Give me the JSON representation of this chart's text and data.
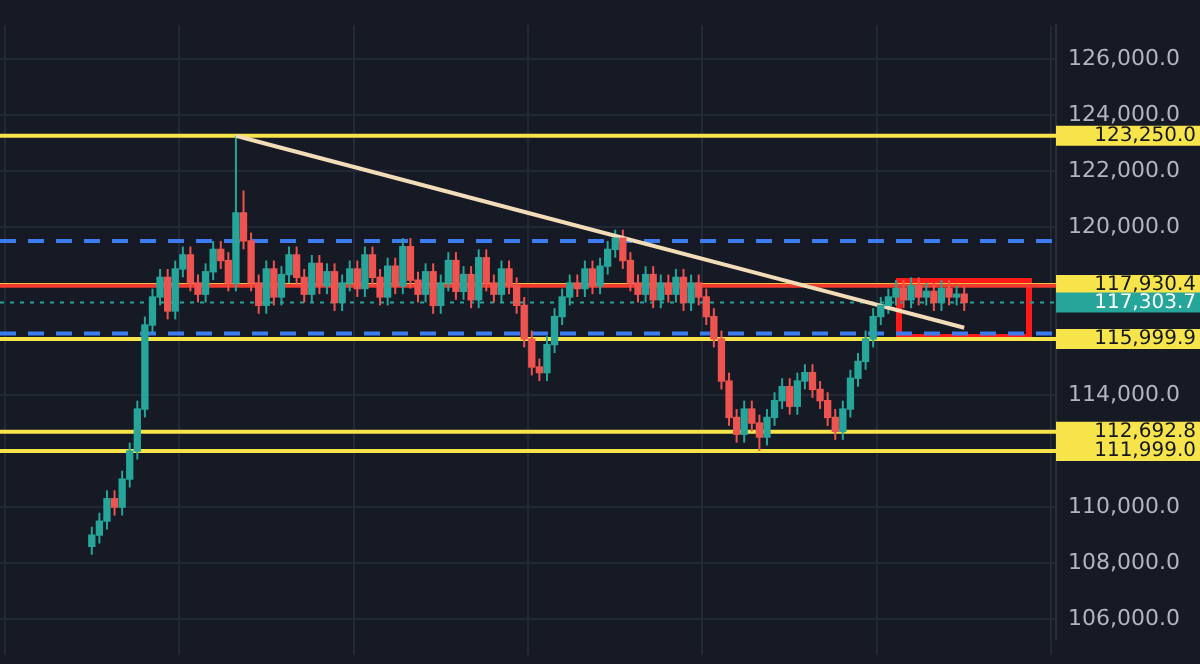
{
  "chart_data": {
    "type": "candlestick",
    "categories": [
      null,
      null,
      null,
      null,
      null,
      null,
      null,
      null,
      null,
      null,
      null,
      null,
      null,
      null,
      null,
      null,
      null,
      null,
      null,
      null,
      null,
      null,
      null,
      null,
      null,
      null,
      null,
      null,
      null,
      null,
      null,
      null,
      null,
      null,
      null,
      null,
      null,
      null,
      null,
      null,
      null,
      null,
      null,
      null,
      null,
      null,
      null,
      null,
      null,
      null,
      null,
      null,
      null,
      null,
      null,
      null,
      null,
      null,
      null,
      null,
      null,
      null,
      null,
      null,
      null,
      null,
      null,
      null,
      null,
      null,
      null,
      null,
      null,
      null,
      null,
      null,
      null,
      null,
      null,
      null,
      null,
      null,
      null,
      null,
      null,
      null,
      null,
      null,
      null,
      null,
      null,
      null,
      null,
      null,
      null,
      null,
      null,
      null,
      null,
      null,
      null,
      null,
      null,
      null,
      null,
      null,
      null,
      null,
      null,
      null,
      null,
      null,
      null,
      null,
      null,
      null
    ],
    "series": [
      {
        "type": "candlestick",
        "colors": [
          "#26a69a",
          "#26a69a",
          "#26a69a",
          "#ef5350",
          "#26a69a",
          "#26a69a",
          "#26a69a",
          "#26a69a",
          "#26a69a",
          "#26a69a",
          "#ef5350",
          "#26a69a",
          "#26a69a",
          "#ef5350",
          "#ef5350",
          "#26a69a",
          "#26a69a",
          "#ef5350",
          "#ef5350",
          "#26a69a",
          "#ef5350",
          "#ef5350",
          "#ef5350",
          "#26a69a",
          "#ef5350",
          "#26a69a",
          "#26a69a",
          "#ef5350",
          "#ef5350",
          "#26a69a",
          "#ef5350",
          "#26a69a",
          "#ef5350",
          "#26a69a",
          "#26a69a",
          "#ef5350",
          "#26a69a",
          "#ef5350",
          "#ef5350",
          "#26a69a",
          "#ef5350",
          "#26a69a",
          "#ef5350",
          "#ef5350",
          "#26a69a",
          "#ef5350",
          "#26a69a",
          "#26a69a",
          "#ef5350",
          "#26a69a",
          "#ef5350",
          "#26a69a",
          "#ef5350",
          "#ef5350",
          "#26a69a",
          "#ef5350",
          "#ef5350",
          "#ef5350",
          "#ef5350",
          "#ef5350",
          "#26a69a",
          "#26a69a",
          "#26a69a",
          "#26a69a",
          "#ef5350",
          "#26a69a",
          "#ef5350",
          "#26a69a",
          "#26a69a",
          "#26a69a",
          "#ef5350",
          "#ef5350",
          "#ef5350",
          "#26a69a",
          "#ef5350",
          "#26a69a",
          "#ef5350",
          "#26a69a",
          "#ef5350",
          "#26a69a",
          "#ef5350",
          "#ef5350",
          "#ef5350",
          "#ef5350",
          "#ef5350",
          "#ef5350",
          "#26a69a",
          "#ef5350",
          "#ef5350",
          "#26a69a",
          "#26a69a",
          "#26a69a",
          "#ef5350",
          "#26a69a",
          "#26a69a",
          "#ef5350",
          "#ef5350",
          "#ef5350",
          "#ef5350",
          "#26a69a",
          "#26a69a",
          "#26a69a",
          "#26a69a",
          "#26a69a",
          "#26a69a",
          "#26a69a",
          "#26a69a",
          "#ef5350",
          "#26a69a",
          "#ef5350",
          "#26a69a",
          "#ef5350",
          "#26a69a",
          "#ef5350",
          "#26a69a",
          "#ef5350"
        ],
        "ohlc": [
          [
            108600,
            109300,
            108300,
            109000
          ],
          [
            109000,
            109800,
            108700,
            109500
          ],
          [
            109500,
            110600,
            109200,
            110300
          ],
          [
            110300,
            110600,
            109700,
            110000
          ],
          [
            110000,
            111300,
            109700,
            111000
          ],
          [
            111000,
            112300,
            110700,
            112000
          ],
          [
            112000,
            113800,
            111700,
            113500
          ],
          [
            113500,
            116800,
            113200,
            116500
          ],
          [
            116500,
            117800,
            116200,
            117500
          ],
          [
            117500,
            118500,
            117200,
            118200
          ],
          [
            118200,
            118500,
            116700,
            117000
          ],
          [
            117000,
            118800,
            116700,
            118500
          ],
          [
            118500,
            119300,
            118200,
            119000
          ],
          [
            119000,
            119300,
            117700,
            118000
          ],
          [
            118000,
            118300,
            117300,
            117600
          ],
          [
            117600,
            118700,
            117300,
            118400
          ],
          [
            118400,
            119500,
            118100,
            119200
          ],
          [
            119200,
            119500,
            118500,
            118800
          ],
          [
            118800,
            119100,
            117700,
            118000
          ],
          [
            118000,
            123250,
            117700,
            120500
          ],
          [
            120500,
            121300,
            119200,
            119500
          ],
          [
            119500,
            119800,
            117700,
            118000
          ],
          [
            118000,
            118300,
            116900,
            117200
          ],
          [
            117200,
            118800,
            116900,
            118500
          ],
          [
            118500,
            118800,
            117200,
            117500
          ],
          [
            117500,
            118600,
            117200,
            118300
          ],
          [
            118300,
            119300,
            118000,
            119000
          ],
          [
            119000,
            119300,
            117900,
            118200
          ],
          [
            118200,
            118500,
            117300,
            117600
          ],
          [
            117600,
            119000,
            117300,
            118700
          ],
          [
            118700,
            119000,
            117600,
            117900
          ],
          [
            117900,
            118700,
            117600,
            118400
          ],
          [
            118400,
            118700,
            117000,
            117300
          ],
          [
            117300,
            118300,
            117000,
            118000
          ],
          [
            118000,
            118800,
            117700,
            118500
          ],
          [
            118500,
            118800,
            117500,
            117800
          ],
          [
            117800,
            119300,
            117500,
            119000
          ],
          [
            119000,
            119300,
            117900,
            118200
          ],
          [
            118200,
            118500,
            117200,
            117500
          ],
          [
            117500,
            118900,
            117200,
            118600
          ],
          [
            118600,
            118900,
            117600,
            117900
          ],
          [
            117900,
            119600,
            117600,
            119300
          ],
          [
            119300,
            119600,
            117800,
            118100
          ],
          [
            118100,
            118400,
            117300,
            117600
          ],
          [
            117600,
            118700,
            117300,
            118400
          ],
          [
            118400,
            118700,
            116900,
            117200
          ],
          [
            117200,
            118300,
            116900,
            118000
          ],
          [
            118000,
            119100,
            117700,
            118800
          ],
          [
            118800,
            119100,
            117400,
            117700
          ],
          [
            117700,
            118600,
            117400,
            118300
          ],
          [
            118300,
            118600,
            117100,
            117400
          ],
          [
            117400,
            119200,
            117100,
            118900
          ],
          [
            118900,
            119200,
            117700,
            118000
          ],
          [
            118000,
            118300,
            117300,
            117600
          ],
          [
            117600,
            118800,
            117300,
            118500
          ],
          [
            118500,
            118800,
            117600,
            117900
          ],
          [
            117900,
            118200,
            116900,
            117200
          ],
          [
            117200,
            117500,
            115700,
            116000
          ],
          [
            116000,
            116300,
            114700,
            115000
          ],
          [
            115000,
            115300,
            114500,
            114800
          ],
          [
            114800,
            116100,
            114500,
            115800
          ],
          [
            115800,
            117100,
            115500,
            116800
          ],
          [
            116800,
            117800,
            116500,
            117500
          ],
          [
            117500,
            118300,
            117200,
            118000
          ],
          [
            118000,
            118300,
            117500,
            117800
          ],
          [
            117800,
            118800,
            117500,
            118500
          ],
          [
            118500,
            118800,
            117600,
            117900
          ],
          [
            117900,
            118900,
            117600,
            118600
          ],
          [
            118600,
            119500,
            118300,
            119200
          ],
          [
            119200,
            119900,
            118900,
            119600
          ],
          [
            119600,
            119900,
            118500,
            118800
          ],
          [
            118800,
            119100,
            117700,
            118000
          ],
          [
            118000,
            118300,
            117300,
            117600
          ],
          [
            117600,
            118600,
            117300,
            118300
          ],
          [
            118300,
            118600,
            117100,
            117400
          ],
          [
            117400,
            118300,
            117100,
            118000
          ],
          [
            118000,
            118300,
            117300,
            117600
          ],
          [
            117600,
            118500,
            117300,
            118200
          ],
          [
            118200,
            118500,
            117000,
            117300
          ],
          [
            117300,
            118300,
            117000,
            118000
          ],
          [
            118000,
            118300,
            117200,
            117500
          ],
          [
            117500,
            117800,
            116500,
            116800
          ],
          [
            116800,
            117100,
            115700,
            116000
          ],
          [
            116000,
            116300,
            114200,
            114500
          ],
          [
            114500,
            114800,
            112900,
            113200
          ],
          [
            113200,
            113500,
            112300,
            112600
          ],
          [
            112600,
            113800,
            112300,
            113500
          ],
          [
            113500,
            113800,
            112700,
            113000
          ],
          [
            113000,
            113300,
            112000,
            112500
          ],
          [
            112500,
            113500,
            112200,
            113200
          ],
          [
            113200,
            114100,
            112900,
            113800
          ],
          [
            113800,
            114600,
            113500,
            114300
          ],
          [
            114300,
            114600,
            113300,
            113600
          ],
          [
            113600,
            114800,
            113300,
            114500
          ],
          [
            114500,
            115100,
            114200,
            114800
          ],
          [
            114800,
            115100,
            113900,
            114200
          ],
          [
            114200,
            114500,
            113500,
            113800
          ],
          [
            113800,
            114100,
            112900,
            113200
          ],
          [
            113200,
            113500,
            112400,
            112700
          ],
          [
            112700,
            113800,
            112400,
            113500
          ],
          [
            113500,
            114900,
            113200,
            114600
          ],
          [
            114600,
            115500,
            114300,
            115200
          ],
          [
            115200,
            116300,
            114900,
            116000
          ],
          [
            116000,
            117100,
            115700,
            116800
          ],
          [
            116800,
            117500,
            116500,
            117200
          ],
          [
            117200,
            117800,
            116900,
            117500
          ],
          [
            117500,
            118100,
            117200,
            117800
          ],
          [
            117800,
            118100,
            117100,
            117400
          ],
          [
            117400,
            118200,
            117100,
            117900
          ],
          [
            117900,
            118200,
            117200,
            117500
          ],
          [
            117500,
            118000,
            117200,
            117700
          ],
          [
            117700,
            118000,
            117000,
            117300
          ],
          [
            117300,
            118100,
            117000,
            117800
          ],
          [
            117800,
            118100,
            117200,
            117500
          ],
          [
            117500,
            117900,
            117200,
            117600
          ],
          [
            117600,
            117900,
            117000,
            117303.7
          ]
        ]
      },
      {
        "type": "line",
        "color": "#f3dcb8",
        "values": [
          null,
          null,
          null,
          null,
          null,
          null,
          null,
          null,
          null,
          null,
          null,
          null,
          null,
          null,
          null,
          null,
          null,
          null,
          null,
          123250,
          null,
          null,
          null,
          null,
          null,
          null,
          null,
          null,
          null,
          null,
          null,
          null,
          null,
          null,
          null,
          null,
          null,
          null,
          null,
          null,
          null,
          null,
          null,
          null,
          null,
          null,
          null,
          null,
          null,
          null,
          null,
          null,
          null,
          null,
          null,
          null,
          null,
          null,
          null,
          null,
          null,
          null,
          null,
          null,
          null,
          null,
          null,
          null,
          null,
          null,
          null,
          null,
          null,
          null,
          null,
          null,
          null,
          null,
          null,
          null,
          null,
          null,
          null,
          null,
          null,
          null,
          null,
          null,
          null,
          null,
          null,
          null,
          null,
          null,
          null,
          null,
          null,
          null,
          null,
          null,
          null,
          null,
          null,
          null,
          null,
          null,
          null,
          null,
          null,
          null,
          null,
          null,
          null,
          null,
          null,
          116400
        ]
      }
    ],
    "ylim": [
      105300,
      127200
    ],
    "yticks": [
      {
        "value": 106000,
        "label": "106,000.0"
      },
      {
        "value": 108000,
        "label": "108,000.0"
      },
      {
        "value": 110000,
        "label": "110,000.0"
      },
      {
        "value": 114000,
        "label": "114,000.0"
      },
      {
        "value": 120000,
        "label": "120,000.0"
      },
      {
        "value": 122000,
        "label": "122,000.0"
      },
      {
        "value": 124000,
        "label": "124,000.0"
      },
      {
        "value": 126000,
        "label": "126,000.0"
      }
    ],
    "tick_labels": "y",
    "grid": true,
    "ref_lines": [
      {
        "axis": "y",
        "value": 123250,
        "label": "123,250.0",
        "color": "#f7e44a",
        "line_style": "solid"
      },
      {
        "axis": "y",
        "value": 117930.4,
        "label": "117,930.4",
        "color": "#f7e44a",
        "line_style": "solid"
      },
      {
        "axis": "y",
        "value": 115999.9,
        "label": "115,999.9",
        "color": "#f7e44a",
        "line_style": "solid"
      },
      {
        "axis": "y",
        "value": 112692.8,
        "label": "112,692.8",
        "color": "#f7e44a",
        "line_style": "solid"
      },
      {
        "axis": "y",
        "value": 111999.0,
        "label": "111,999.0",
        "color": "#f7e44a",
        "line_style": "solid"
      },
      {
        "axis": "y",
        "value": 117303.7,
        "label": "117,303.7",
        "color": "#26a69a",
        "line_style": "dotted"
      },
      {
        "axis": "y",
        "value": 119500,
        "color": "#3d7bf0",
        "line_style": "dashed"
      },
      {
        "axis": "y",
        "value": 116200,
        "color": "#3d7bf0",
        "line_style": "dashed"
      },
      {
        "axis": "y",
        "value": 117900,
        "color": "#f23b2f",
        "line_style": "solid"
      }
    ]
  }
}
